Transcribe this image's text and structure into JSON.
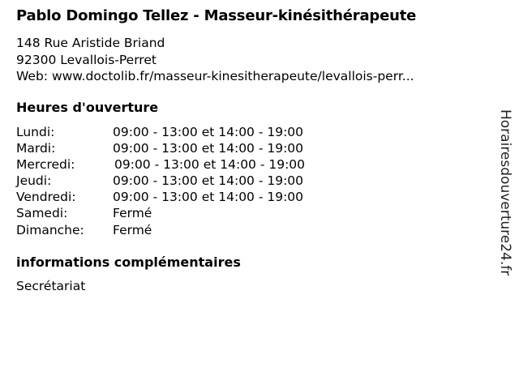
{
  "title": "Pablo Domingo Tellez - Masseur-kinésithérapeute",
  "address": {
    "street": "148 Rue Aristide Briand",
    "city": "92300 Levallois-Perret",
    "web": "Web: www.doctolib.fr/masseur-kinesitherapeute/levallois-perr..."
  },
  "hours_heading": "Heures d'ouverture",
  "hours": [
    {
      "day": "Lundi:",
      "time": "09:00 - 13:00 et 14:00 - 19:00"
    },
    {
      "day": "Mardi:",
      "time": "09:00 - 13:00 et 14:00 - 19:00"
    },
    {
      "day": "Mercredi:",
      "time": "09:00 - 13:00 et 14:00 - 19:00"
    },
    {
      "day": "Jeudi:",
      "time": "09:00 - 13:00 et 14:00 - 19:00"
    },
    {
      "day": "Vendredi:",
      "time": "09:00 - 13:00 et 14:00 - 19:00"
    },
    {
      "day": "Samedi:",
      "time": "Fermé"
    },
    {
      "day": "Dimanche:",
      "time": "Fermé"
    }
  ],
  "info_heading": "informations complémentaires",
  "info_text": "Secrétariat",
  "watermark": "Horairesdouverture24.fr"
}
